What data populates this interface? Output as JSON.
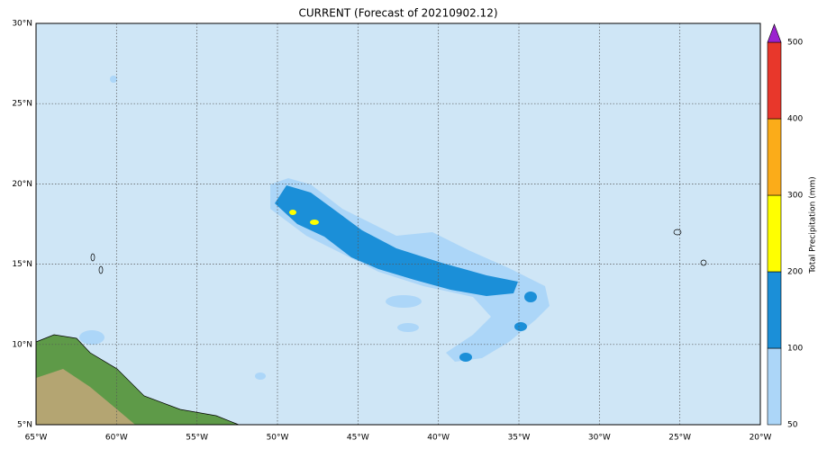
{
  "title": "CURRENT (Forecast of 20210902.12)",
  "map": {
    "lon_ticks": [
      "65°W",
      "60°W",
      "55°W",
      "50°W",
      "45°W",
      "40°W",
      "35°W",
      "30°W",
      "25°W",
      "20°W"
    ],
    "lat_ticks": [
      "30°N",
      "25°N",
      "20°N",
      "15°N",
      "10°N",
      "5°N"
    ]
  },
  "colorbar": {
    "label": "Total Precipitation (mm)",
    "ticks": [
      50,
      100,
      200,
      300,
      400,
      500
    ],
    "colors": [
      "#acd6f8",
      "#1b8fd8",
      "#ffff00",
      "#fbac19",
      "#e8372b"
    ],
    "extend_color": "#9b22cf"
  }
}
